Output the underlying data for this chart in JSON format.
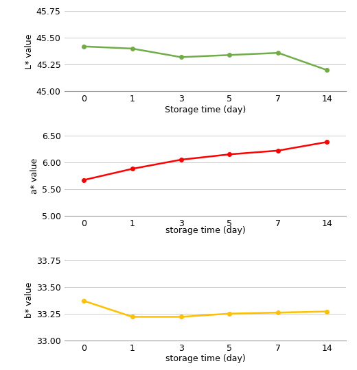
{
  "x": [
    0,
    1,
    3,
    5,
    7,
    14
  ],
  "L_values": [
    45.42,
    45.4,
    45.32,
    45.34,
    45.36,
    45.2
  ],
  "a_values": [
    5.67,
    5.88,
    6.05,
    6.15,
    6.22,
    6.38
  ],
  "b_values": [
    33.37,
    33.22,
    33.22,
    33.25,
    33.26,
    33.27
  ],
  "L_color": "#70AD47",
  "a_color": "#FF0000",
  "b_color": "#FFC000",
  "L_ylim": [
    45.0,
    45.75
  ],
  "a_ylim": [
    5.0,
    6.5
  ],
  "b_ylim": [
    33.0,
    33.75
  ],
  "L_yticks": [
    45.0,
    45.25,
    45.5,
    45.75
  ],
  "a_yticks": [
    5.0,
    5.5,
    6.0,
    6.5
  ],
  "b_yticks": [
    33.0,
    33.25,
    33.5,
    33.75
  ],
  "L_ylabel": "L* value",
  "a_ylabel": "a* value",
  "b_ylabel": "b* value",
  "top_xlabel": "Storage time (day)",
  "mid_xlabel": "storage time (day)",
  "bot_xlabel": "storage time (day)",
  "xtick_labels": [
    "0",
    "1",
    "3",
    "5",
    "7",
    "14"
  ],
  "line_width": 1.8,
  "marker_size": 4,
  "tick_fontsize": 9,
  "label_fontsize": 9
}
